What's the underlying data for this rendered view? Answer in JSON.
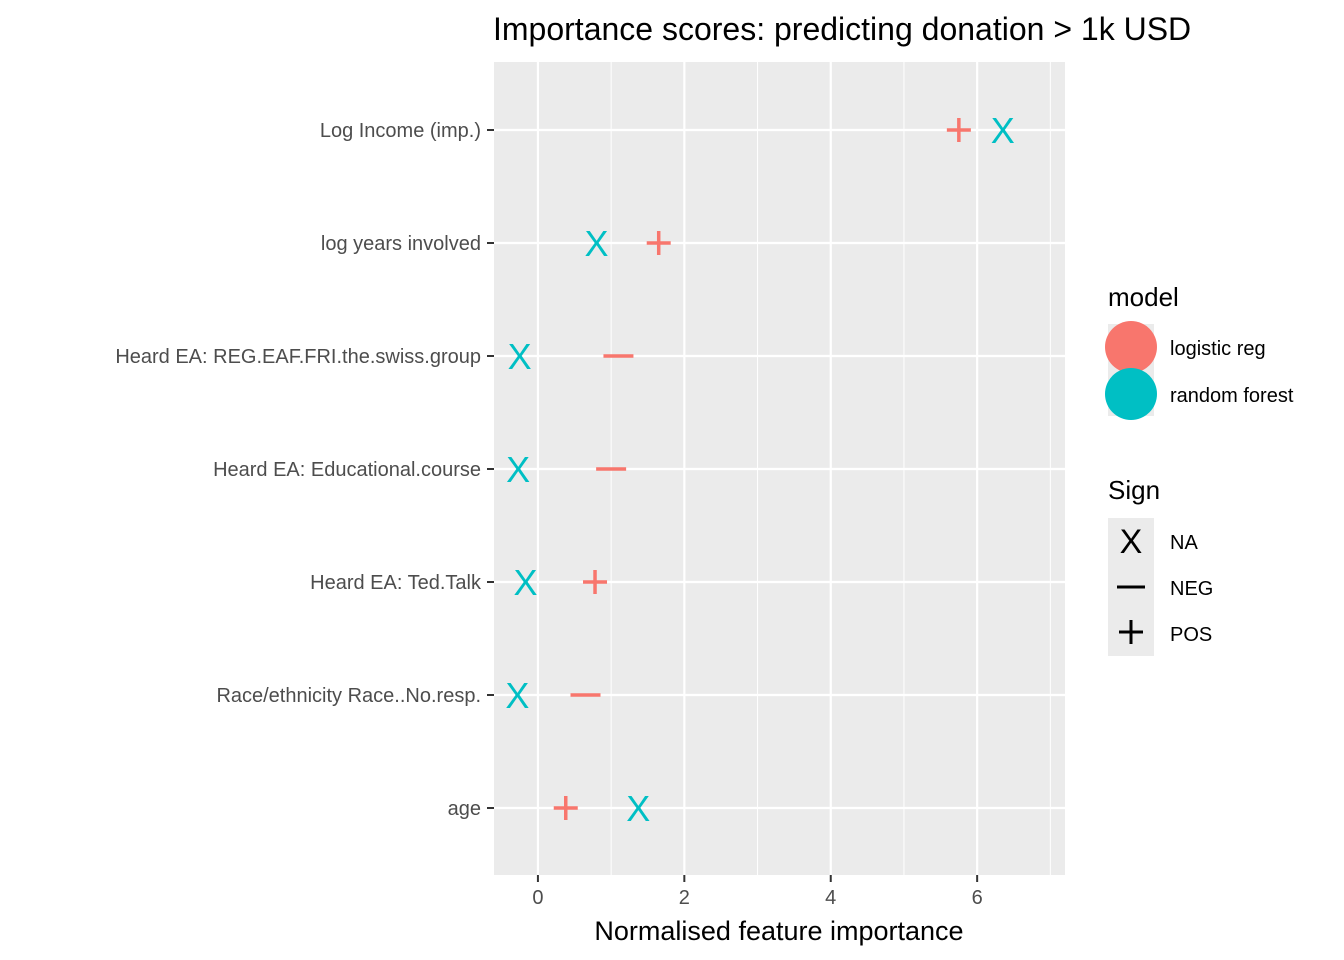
{
  "chart_data": {
    "type": "scatter",
    "title": "Importance scores: predicting donation > 1k USD",
    "xlabel": "Normalised feature importance",
    "ylabel": "",
    "xlim": [
      -0.6,
      7.2
    ],
    "xticks": [
      0,
      2,
      4,
      6
    ],
    "grid": true,
    "legend_position": "right",
    "categories": [
      "Log Income (imp.)",
      "log years involved",
      "Heard EA: REG.EAF.FRI.the.swiss.group",
      "Heard EA: Educational.course",
      "Heard EA: Ted.Talk",
      "Race/ethnicity Race..No.resp.",
      "age"
    ],
    "series": [
      {
        "name": "logistic reg",
        "color": "#f8766d",
        "values": [
          5.75,
          1.65,
          1.1,
          1.0,
          0.78,
          0.65,
          0.38
        ],
        "signs": [
          "POS",
          "POS",
          "NEG",
          "NEG",
          "POS",
          "NEG",
          "POS"
        ]
      },
      {
        "name": "random forest",
        "color": "#00bfc4",
        "values": [
          6.35,
          0.8,
          -0.25,
          -0.27,
          -0.17,
          -0.28,
          1.37
        ],
        "signs": [
          "NA",
          "NA",
          "NA",
          "NA",
          "NA",
          "NA",
          "NA"
        ]
      }
    ],
    "legend_model": {
      "title": "model",
      "entries": [
        "logistic reg",
        "random forest"
      ]
    },
    "legend_sign": {
      "title": "Sign",
      "entries": [
        "NA",
        "NEG",
        "POS"
      ]
    }
  }
}
